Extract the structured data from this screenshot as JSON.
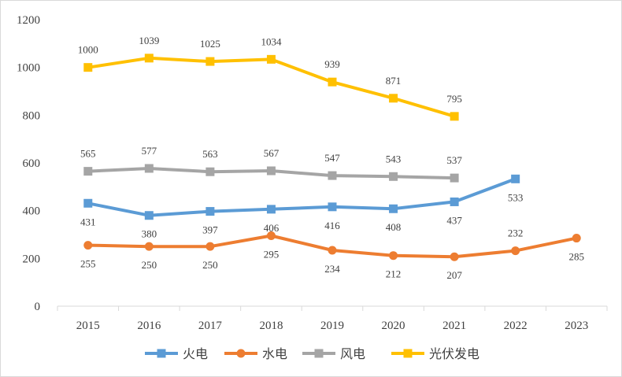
{
  "chart_data": {
    "type": "line",
    "title": "",
    "xlabel": "",
    "ylabel": "",
    "categories": [
      "2015",
      "2016",
      "2017",
      "2018",
      "2019",
      "2020",
      "2021",
      "2022",
      "2023"
    ],
    "ylim": [
      0,
      1200
    ],
    "yticks": [
      0,
      200,
      400,
      600,
      800,
      1000,
      1200
    ],
    "grid": false,
    "legend_position": "bottom",
    "series": [
      {
        "name": "火电",
        "color": "#5B9BD5",
        "marker": "square",
        "values": [
          431,
          380,
          397,
          406,
          416,
          408,
          437,
          533,
          null
        ],
        "labels": [
          "431",
          "380",
          "397",
          "406",
          "416",
          "408",
          "437",
          "533",
          ""
        ],
        "label_pos": [
          "below",
          "below",
          "below",
          "below",
          "below",
          "below",
          "below",
          "below",
          ""
        ]
      },
      {
        "name": "水电",
        "color": "#ED7D31",
        "marker": "circle",
        "values": [
          255,
          250,
          250,
          295,
          234,
          212,
          207,
          232,
          285
        ],
        "labels": [
          "255",
          "250",
          "250",
          "295",
          "234",
          "212",
          "207",
          "232",
          "285"
        ],
        "label_pos": [
          "below",
          "below",
          "below",
          "below",
          "below",
          "below",
          "below",
          "above",
          "below"
        ]
      },
      {
        "name": "风电",
        "color": "#A5A5A5",
        "marker": "square",
        "values": [
          565,
          577,
          563,
          567,
          547,
          543,
          537,
          null,
          null
        ],
        "labels": [
          "565",
          "577",
          "563",
          "567",
          "547",
          "543",
          "537",
          "",
          ""
        ],
        "label_pos": [
          "above",
          "above",
          "above",
          "above",
          "above",
          "above",
          "above",
          "",
          ""
        ]
      },
      {
        "name": "光伏发电",
        "color": "#FFC000",
        "marker": "square",
        "values": [
          1000,
          1039,
          1025,
          1034,
          939,
          871,
          795,
          null,
          null
        ],
        "labels": [
          "1000",
          "1039",
          "1025",
          "1034",
          "939",
          "871",
          "795",
          "",
          ""
        ],
        "label_pos": [
          "above",
          "above",
          "above",
          "above",
          "above",
          "above",
          "above",
          "",
          ""
        ]
      }
    ]
  }
}
